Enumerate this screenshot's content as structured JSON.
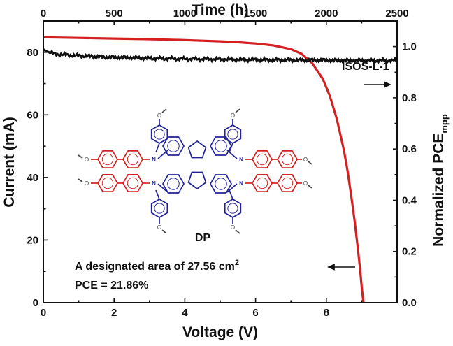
{
  "chart_data": {
    "type": "line",
    "xlabel": "Voltage (V)",
    "ylabel": "Current (mA)",
    "x2label": "Time (h)",
    "y2label_main": "Normalized PCE",
    "y2label_sub": "mpp",
    "xlim": [
      0,
      10
    ],
    "ylim": [
      0,
      90
    ],
    "x2lim": [
      0,
      2500
    ],
    "y2lim": [
      0,
      1.1
    ],
    "x_ticks": [
      "0",
      "2",
      "4",
      "6",
      "8"
    ],
    "y_ticks": [
      "0",
      "20",
      "40",
      "60",
      "80"
    ],
    "x2_ticks": [
      "0",
      "500",
      "1000",
      "1500",
      "2000",
      "2500"
    ],
    "y2_ticks": [
      "0.0",
      "0.2",
      "0.4",
      "0.6",
      "0.8",
      "1.0"
    ],
    "grid": false,
    "series": [
      {
        "color": "#d42020",
        "axes": "bottom-left",
        "x": [
          0,
          1,
          2,
          3,
          4,
          5,
          5.5,
          6,
          6.5,
          7,
          7.3,
          7.6,
          7.9,
          8.1,
          8.3,
          8.5,
          8.6,
          8.7,
          8.8,
          8.9,
          8.95,
          9.0,
          9.05
        ],
        "y": [
          84.8,
          84.6,
          84.4,
          84.2,
          83.9,
          83.5,
          83.2,
          82.8,
          82.2,
          81.0,
          79.5,
          76.5,
          71.5,
          66.0,
          58.5,
          48.5,
          42.0,
          34.5,
          26.0,
          16.5,
          11.0,
          5.0,
          0
        ]
      },
      {
        "color": "#111111",
        "axes": "top-right",
        "x": [
          0,
          10,
          30,
          60,
          100,
          150,
          200,
          300,
          400,
          500,
          600,
          700,
          800,
          900,
          1000,
          1100,
          1200,
          1300,
          1400,
          1500,
          1600,
          1700,
          1800,
          1900,
          2000,
          2100,
          2200,
          2300,
          2400,
          2500
        ],
        "y": [
          0.99,
          0.985,
          0.98,
          0.975,
          0.97,
          0.968,
          0.966,
          0.963,
          0.96,
          0.958,
          0.957,
          0.955,
          0.954,
          0.953,
          0.952,
          0.951,
          0.951,
          0.95,
          0.949,
          0.949,
          0.948,
          0.948,
          0.947,
          0.947,
          0.947,
          0.946,
          0.946,
          0.946,
          0.946,
          0.946
        ]
      }
    ],
    "annotations": {
      "isos": "ISOS-L-1",
      "area_text": "A designated area of 27.56 cm",
      "area_sup": "2",
      "pce": "PCE = 21.86%",
      "molecule": "DP"
    }
  },
  "molecule": {
    "o_label": "O",
    "n_label": "N",
    "arm_color": "#d42020",
    "core_color": "#22229a"
  }
}
